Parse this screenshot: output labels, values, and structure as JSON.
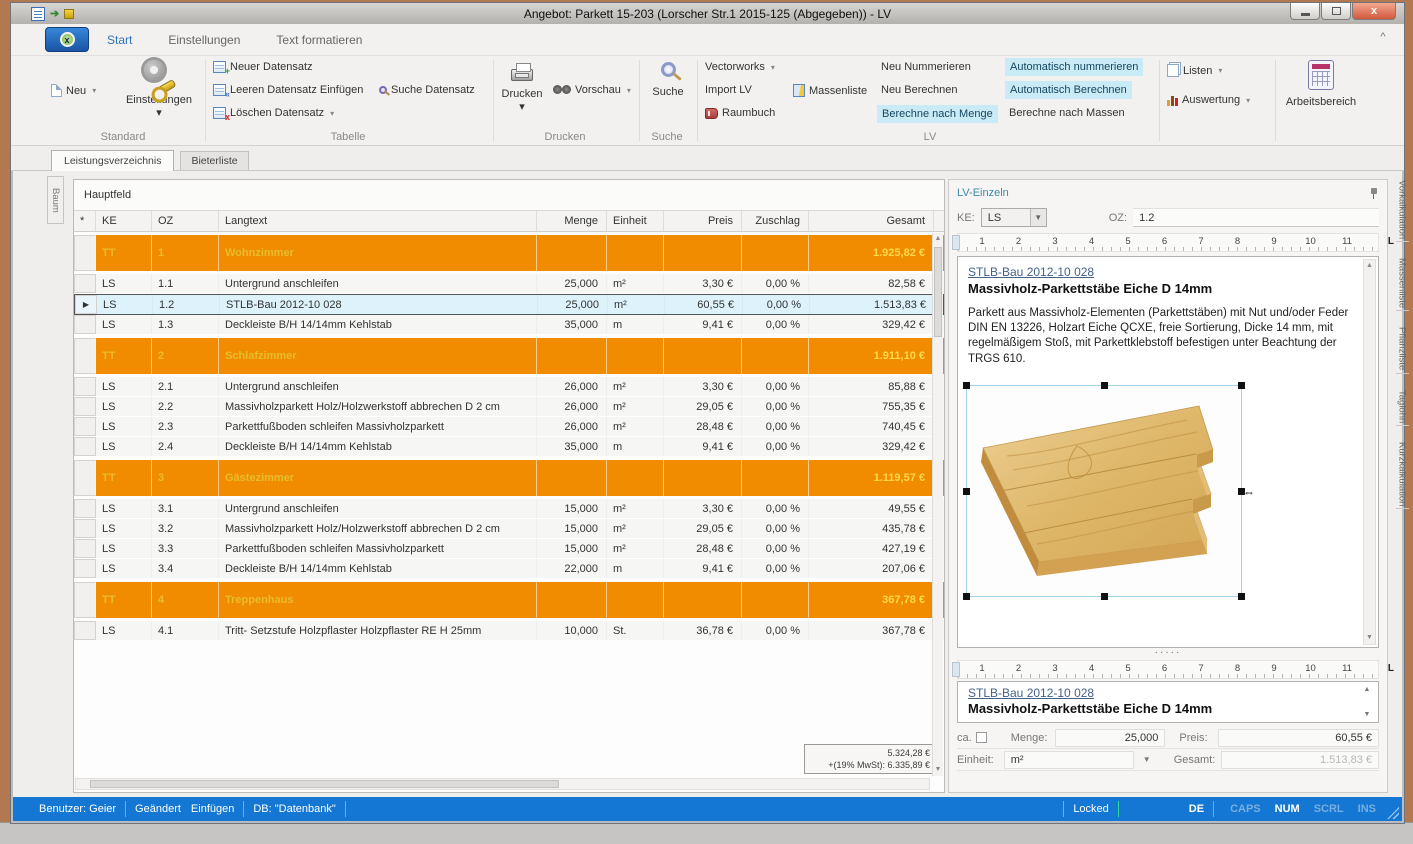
{
  "titlebar": {
    "title": "Angebot: Parkett 15-203 (Lorscher Str.1 2015-125 (Abgegeben)) - LV"
  },
  "ribbon": {
    "tabs": [
      {
        "label": "Start"
      },
      {
        "label": "Einstellungen"
      },
      {
        "label": "Text formatieren"
      }
    ],
    "standard": {
      "neu": "Neu",
      "einstellungen": "Einstellungen",
      "group_label": "Standard"
    },
    "tabelle": {
      "neuer_datensatz": "Neuer Datensatz",
      "leeren": "Leeren Datensatz Einfügen",
      "suche_datensatz": "Suche Datensatz",
      "loeschen": "Löschen Datensatz",
      "group_label": "Tabelle"
    },
    "drucken": {
      "drucken": "Drucken",
      "vorschau": "Vorschau",
      "group_label": "Drucken"
    },
    "suche": {
      "suche": "Suche",
      "group_label": "Suche"
    },
    "lv": {
      "vectorworks": "Vectorworks",
      "import_lv": "Import LV",
      "raumbuch": "Raumbuch",
      "massenliste": "Massenliste",
      "neu_nummerieren": "Neu Nummerieren",
      "neu_berechnen": "Neu Berechnen",
      "berechne_nach_menge": "Berechne nach Menge",
      "auto_nummerieren": "Automatisch nummerieren",
      "auto_berechnen": "Automatisch Berechnen",
      "berechne_nach_massen": "Berechne nach Massen",
      "group_label": "LV"
    },
    "listen": {
      "listen": "Listen",
      "auswertung": "Auswertung"
    },
    "arbeitsbereich": {
      "label": "Arbeitsbereich"
    }
  },
  "doc_tabs": {
    "lv": "Leistungsverzeichnis",
    "bieter": "Bieterliste"
  },
  "left_tab": "Baum",
  "main": {
    "panel_title": "Hauptfeld",
    "columns": [
      "*",
      "KE",
      "OZ",
      "Langtext",
      "Menge",
      "Einheit",
      "Preis",
      "Zuschlag",
      "Gesamt"
    ],
    "rows": [
      {
        "type": "group",
        "ke": "TT",
        "oz": "1",
        "langtext": "Wohnzimmer",
        "menge": "",
        "einheit": "",
        "preis": "",
        "zuschlag": "",
        "gesamt": "1.925,82 €"
      },
      {
        "type": "item",
        "ke": "LS",
        "oz": "1.1",
        "langtext": "Untergrund anschleifen",
        "menge": "25,000",
        "einheit": "m²",
        "preis": "3,30 €",
        "zuschlag": "0,00 %",
        "gesamt": "82,58 €"
      },
      {
        "type": "item",
        "selected": true,
        "ke": "LS",
        "oz": "1.2",
        "langtext": "STLB-Bau 2012-10 028",
        "menge": "25,000",
        "einheit": "m²",
        "preis": "60,55 €",
        "zuschlag": "0,00 %",
        "gesamt": "1.513,83 €"
      },
      {
        "type": "item",
        "ke": "LS",
        "oz": "1.3",
        "langtext": "Deckleiste B/H 14/14mm Kehlstab",
        "menge": "35,000",
        "einheit": "m",
        "preis": "9,41 €",
        "zuschlag": "0,00 %",
        "gesamt": "329,42 €"
      },
      {
        "type": "group",
        "ke": "TT",
        "oz": "2",
        "langtext": "Schlafzimmer",
        "menge": "",
        "einheit": "",
        "preis": "",
        "zuschlag": "",
        "gesamt": "1.911,10 €"
      },
      {
        "type": "item",
        "ke": "LS",
        "oz": "2.1",
        "langtext": "Untergrund anschleifen",
        "menge": "26,000",
        "einheit": "m²",
        "preis": "3,30 €",
        "zuschlag": "0,00 %",
        "gesamt": "85,88 €"
      },
      {
        "type": "item",
        "ke": "LS",
        "oz": "2.2",
        "langtext": "Massivholzparkett Holz/Holzwerkstoff abbrechen D 2 cm",
        "menge": "26,000",
        "einheit": "m²",
        "preis": "29,05 €",
        "zuschlag": "0,00 %",
        "gesamt": "755,35 €"
      },
      {
        "type": "item",
        "ke": "LS",
        "oz": "2.3",
        "langtext": "Parkettfußboden schleifen Massivholzparkett",
        "menge": "26,000",
        "einheit": "m²",
        "preis": "28,48 €",
        "zuschlag": "0,00 %",
        "gesamt": "740,45 €"
      },
      {
        "type": "item",
        "ke": "LS",
        "oz": "2.4",
        "langtext": "Deckleiste B/H 14/14mm Kehlstab",
        "menge": "35,000",
        "einheit": "m",
        "preis": "9,41 €",
        "zuschlag": "0,00 %",
        "gesamt": "329,42 €"
      },
      {
        "type": "group",
        "ke": "TT",
        "oz": "3",
        "langtext": "Gästezimmer",
        "menge": "",
        "einheit": "",
        "preis": "",
        "zuschlag": "",
        "gesamt": "1.119,57 €"
      },
      {
        "type": "item",
        "ke": "LS",
        "oz": "3.1",
        "langtext": "Untergrund anschleifen",
        "menge": "15,000",
        "einheit": "m²",
        "preis": "3,30 €",
        "zuschlag": "0,00 %",
        "gesamt": "49,55 €"
      },
      {
        "type": "item",
        "ke": "LS",
        "oz": "3.2",
        "langtext": "Massivholzparkett Holz/Holzwerkstoff abbrechen D 2 cm",
        "menge": "15,000",
        "einheit": "m²",
        "preis": "29,05 €",
        "zuschlag": "0,00 %",
        "gesamt": "435,78 €"
      },
      {
        "type": "item",
        "ke": "LS",
        "oz": "3.3",
        "langtext": "Parkettfußboden schleifen Massivholzparkett",
        "menge": "15,000",
        "einheit": "m²",
        "preis": "28,48 €",
        "zuschlag": "0,00 %",
        "gesamt": "427,19 €"
      },
      {
        "type": "item",
        "ke": "LS",
        "oz": "3.4",
        "langtext": "Deckleiste B/H 14/14mm Kehlstab",
        "menge": "22,000",
        "einheit": "m",
        "preis": "9,41 €",
        "zuschlag": "0,00 %",
        "gesamt": "207,06 €"
      },
      {
        "type": "group",
        "ke": "TT",
        "oz": "4",
        "langtext": "Treppenhaus",
        "menge": "",
        "einheit": "",
        "preis": "",
        "zuschlag": "",
        "gesamt": "367,78 €"
      },
      {
        "type": "item",
        "ke": "LS",
        "oz": "4.1",
        "langtext": "Tritt- Setzstufe Holzpflaster Holzpflaster RE H 25mm",
        "menge": "10,000",
        "einheit": "St.",
        "preis": "36,78 €",
        "zuschlag": "0,00 %",
        "gesamt": "367,78 €"
      }
    ],
    "footer": {
      "sum_net": "5.324,28 €",
      "sum_gross": "+(19% MwSt): 6.335,89 €"
    }
  },
  "detail": {
    "panel_title": "LV-Einzeln",
    "ke_label": "KE:",
    "ke_value": "LS",
    "oz_label": "OZ:",
    "oz_value": "1.2",
    "ruler_numbers": [
      "1",
      "2",
      "3",
      "4",
      "5",
      "6",
      "7",
      "8",
      "9",
      "10",
      "11"
    ],
    "link_text": "STLB-Bau 2012-10 028",
    "heading": "Massivholz-Parkettstäbe Eiche D 14mm",
    "description": "Parkett aus Massivholz-Elementen (Parkettstäben) mit Nut und/oder Feder DIN EN 13226, Holzart Eiche QCXE, freie Sortierung, Dicke 14 mm, mit regelmäßigem Stoß, mit Parkettklebstoff befestigen unter Beachtung der TRGS 610.",
    "fields": {
      "ca_label": "ca.",
      "menge_label": "Menge:",
      "menge_value": "25,000",
      "preis_label": "Preis:",
      "preis_value": "60,55 €",
      "einheit_label": "Einheit:",
      "einheit_value": "m²",
      "gesamt_label": "Gesamt:",
      "gesamt_value": "1.513,83 €"
    }
  },
  "right_tabs": [
    "Vorkalkulation",
    "Massenliste",
    "Pflanzliste",
    "Taglohn",
    "Kurzkalkulation"
  ],
  "statusbar": {
    "user": "Benutzer: Geier",
    "changed": "Geändert",
    "insert": "Einfügen",
    "db": "DB: \"Datenbank\"",
    "locked": "Locked",
    "lang": "DE",
    "caps": "CAPS",
    "num": "NUM",
    "scrl": "SCRL",
    "ins": "INS"
  },
  "colors": {
    "accent_orange": "#f18c00",
    "group_text": "#e7bd2c",
    "group_total": "#ffd94a",
    "selected_row": "#ddf2fa",
    "ribbon_highlight": "#c9ebf6",
    "status_blue": "#1477d3",
    "status_separator": "#2fd8a5"
  }
}
